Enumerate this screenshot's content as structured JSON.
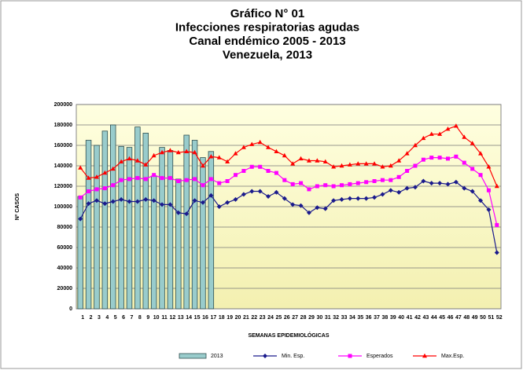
{
  "chart_data": {
    "type": "bar_line",
    "title_lines": [
      "Gráfico  N° 01",
      "Infecciones respiratorias agudas",
      "Canal endémico 2005 - 2013",
      "Venezuela, 2013"
    ],
    "y_label": "Nº CASOS",
    "x_label": "SEMANAS EPIDEMIOLÓGICAS",
    "categories": [
      1,
      2,
      3,
      4,
      5,
      6,
      7,
      8,
      9,
      10,
      11,
      12,
      13,
      14,
      15,
      16,
      17,
      18,
      19,
      20,
      21,
      22,
      23,
      24,
      25,
      26,
      27,
      28,
      29,
      30,
      31,
      32,
      33,
      34,
      35,
      36,
      37,
      38,
      39,
      40,
      41,
      42,
      43,
      44,
      45,
      46,
      47,
      48,
      49,
      50,
      51,
      52
    ],
    "ylim": [
      0,
      200000
    ],
    "yticks": [
      0,
      20000,
      40000,
      60000,
      80000,
      100000,
      120000,
      140000,
      160000,
      180000,
      200000
    ],
    "grid": true,
    "series": [
      {
        "name": "2013",
        "kind": "bar",
        "color": "#99cccc",
        "values": [
          110000,
          165000,
          160000,
          174000,
          180000,
          159000,
          158000,
          178000,
          172000,
          130000,
          158000,
          155000,
          127000,
          170000,
          165000,
          148000,
          154000,
          null,
          null,
          null,
          null,
          null,
          null,
          null,
          null,
          null,
          null,
          null,
          null,
          null,
          null,
          null,
          null,
          null,
          null,
          null,
          null,
          null,
          null,
          null,
          null,
          null,
          null,
          null,
          null,
          null,
          null,
          null,
          null,
          null,
          null,
          null
        ]
      },
      {
        "name": "Min. Esp.",
        "kind": "line",
        "marker": "diamond",
        "color": "#1a1a8c",
        "values": [
          88000,
          103000,
          106000,
          103000,
          105000,
          107000,
          105000,
          105000,
          107000,
          106000,
          102000,
          102000,
          94000,
          93000,
          106000,
          104000,
          111000,
          100000,
          104000,
          107000,
          112000,
          115000,
          115000,
          110000,
          114000,
          108000,
          102000,
          101000,
          94000,
          99000,
          98000,
          106000,
          107000,
          108000,
          108000,
          108000,
          109000,
          112000,
          116000,
          114000,
          118000,
          119000,
          125000,
          123000,
          123000,
          122000,
          124000,
          118000,
          115000,
          106000,
          97000,
          55000
        ]
      },
      {
        "name": "Esperados",
        "kind": "line",
        "marker": "square",
        "color": "#ff00ff",
        "values": [
          109000,
          115000,
          117000,
          118000,
          121000,
          126000,
          127000,
          128000,
          127000,
          131000,
          128000,
          128000,
          125000,
          126000,
          127000,
          121000,
          127000,
          123000,
          125000,
          131000,
          135000,
          139000,
          139000,
          135000,
          133000,
          126000,
          122000,
          123000,
          117000,
          120000,
          121000,
          120000,
          121000,
          122000,
          123000,
          124000,
          125000,
          126000,
          126000,
          129000,
          135000,
          140000,
          146000,
          148000,
          148000,
          147000,
          149000,
          143000,
          137000,
          131000,
          116000,
          82000
        ]
      },
      {
        "name": "Max.Esp.",
        "kind": "line",
        "marker": "triangle",
        "color": "#ff0000",
        "values": [
          138000,
          128000,
          129000,
          133000,
          137000,
          144000,
          147000,
          145000,
          141000,
          150000,
          153000,
          155000,
          153000,
          154000,
          153000,
          140000,
          149000,
          148000,
          144000,
          152000,
          158000,
          161000,
          163000,
          158000,
          154000,
          150000,
          142000,
          147000,
          145000,
          145000,
          144000,
          139000,
          140000,
          141000,
          142000,
          142000,
          142000,
          139000,
          140000,
          145000,
          152000,
          160000,
          167000,
          171000,
          171000,
          176000,
          179000,
          168000,
          162000,
          152000,
          139000,
          120000
        ]
      }
    ]
  }
}
